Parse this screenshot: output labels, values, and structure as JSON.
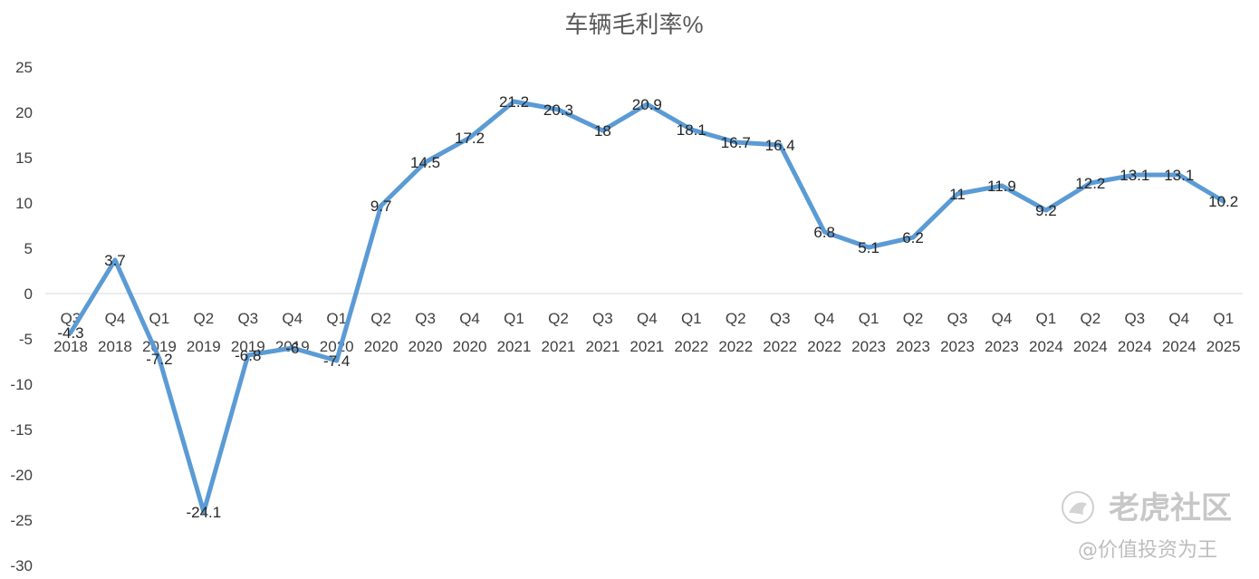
{
  "chart_data": {
    "type": "line",
    "title": "车辆毛利率%",
    "xlabel": "",
    "ylabel": "",
    "ylim": [
      -30,
      25
    ],
    "yticks": [
      25,
      20,
      15,
      10,
      5,
      0,
      -5,
      -10,
      -15,
      -20,
      -25,
      -30
    ],
    "grid": false,
    "legend": "none",
    "line_color": "#5b9bd5",
    "categories": [
      [
        "Q3",
        "2018"
      ],
      [
        "Q4",
        "2018"
      ],
      [
        "Q1",
        "2019"
      ],
      [
        "Q2",
        "2019"
      ],
      [
        "Q3",
        "2019"
      ],
      [
        "Q4",
        "2019"
      ],
      [
        "Q1",
        "2020"
      ],
      [
        "Q2",
        "2020"
      ],
      [
        "Q3",
        "2020"
      ],
      [
        "Q4",
        "2020"
      ],
      [
        "Q1",
        "2021"
      ],
      [
        "Q2",
        "2021"
      ],
      [
        "Q3",
        "2021"
      ],
      [
        "Q4",
        "2021"
      ],
      [
        "Q1",
        "2022"
      ],
      [
        "Q2",
        "2022"
      ],
      [
        "Q3",
        "2022"
      ],
      [
        "Q4",
        "2022"
      ],
      [
        "Q1",
        "2023"
      ],
      [
        "Q2",
        "2023"
      ],
      [
        "Q3",
        "2023"
      ],
      [
        "Q4",
        "2023"
      ],
      [
        "Q1",
        "2024"
      ],
      [
        "Q2",
        "2024"
      ],
      [
        "Q3",
        "2024"
      ],
      [
        "Q4",
        "2024"
      ],
      [
        "Q1",
        "2025"
      ]
    ],
    "values": [
      -4.3,
      3.7,
      -7.2,
      -24.1,
      -6.8,
      -6,
      -7.4,
      9.7,
      14.5,
      17.2,
      21.2,
      20.3,
      18,
      20.9,
      18.1,
      16.7,
      16.4,
      6.8,
      5.1,
      6.2,
      11,
      11.9,
      9.2,
      12.2,
      13.1,
      13.1,
      10.2
    ],
    "data_labels": [
      "-4.3",
      "3.7",
      "-7.2",
      "-24.1",
      "-6.8",
      "-6",
      "-7.4",
      "9.7",
      "14.5",
      "17.2",
      "21.2",
      "20.3",
      "18",
      "20.9",
      "18.1",
      "16.7",
      "16.4",
      "6.8",
      "5.1",
      "6.2",
      "11",
      "11.9",
      "9.2",
      "12.2",
      "13.1",
      "13.1",
      "10.2"
    ]
  },
  "watermark": {
    "brand": "老虎社区",
    "author": "@价值投资为王",
    "icon": "tiger-logo-icon"
  }
}
